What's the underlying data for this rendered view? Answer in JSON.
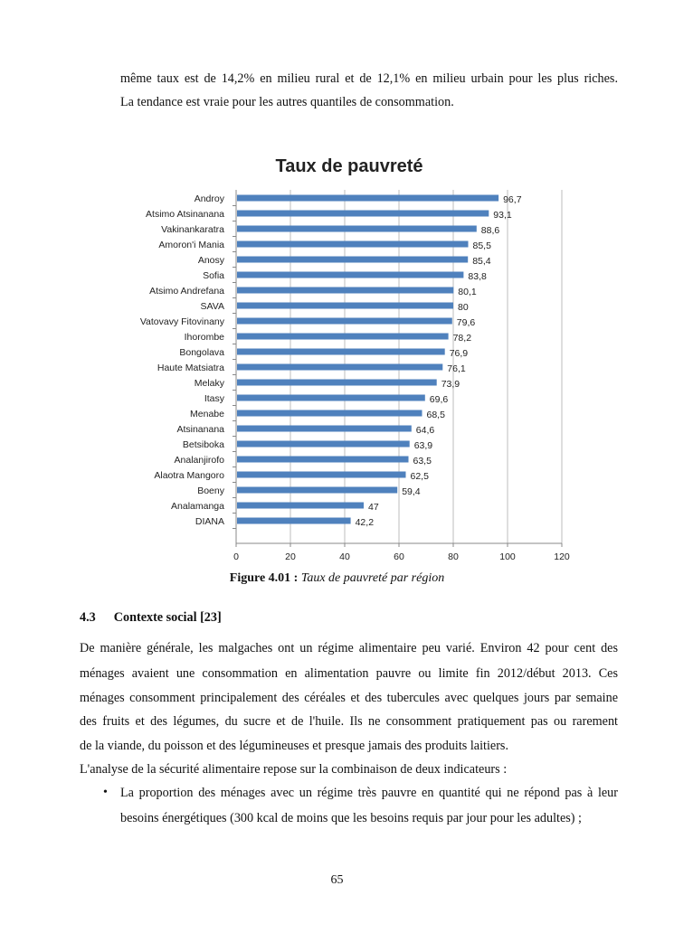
{
  "intro_lines": [
    "même taux est de 14,2% en milieu rural et de 12,1% en milieu urbain pour les plus riches.",
    "La tendance est vraie pour les autres quantiles de consommation."
  ],
  "chart_data": {
    "type": "bar",
    "orientation": "horizontal",
    "title": "Taux de pauvreté",
    "categories": [
      "Androy",
      "Atsimo Atsinanana",
      "Vakinankaratra",
      "Amoron'i Mania",
      "Anosy",
      "Sofia",
      "Atsimo Andrefana",
      "SAVA",
      "Vatovavy Fitovinany",
      "Ihorombe",
      "Bongolava",
      "Haute Matsiatra",
      "Melaky",
      "Itasy",
      "Menabe",
      "Atsinanana",
      "Betsiboka",
      "Analanjirofo",
      "Alaotra Mangoro",
      "Boeny",
      "Analamanga",
      "DIANA"
    ],
    "values": [
      96.7,
      93.1,
      88.6,
      85.5,
      85.4,
      83.8,
      80.1,
      80,
      79.6,
      78.2,
      76.9,
      76.1,
      73.9,
      69.6,
      68.5,
      64.6,
      63.9,
      63.5,
      62.5,
      59.4,
      47,
      42.2
    ],
    "value_labels": [
      "96,7",
      "93,1",
      "88,6",
      "85,5",
      "85,4",
      "83,8",
      "80,1",
      "80",
      "79,6",
      "78,2",
      "76,9",
      "76,1",
      "73,9",
      "69,6",
      "68,5",
      "64,6",
      "63,9",
      "63,5",
      "62,5",
      "59,4",
      "47",
      "42,2"
    ],
    "xlim": [
      0,
      120
    ],
    "xticks": [
      "0",
      "20",
      "40",
      "60",
      "80",
      "100",
      "120"
    ],
    "grid": true,
    "bar_color": "#4f81bd"
  },
  "caption": {
    "label": "Figure 4.01 :",
    "text": " Taux de pauvreté par région"
  },
  "heading": {
    "number": "4.3",
    "title": "Contexte social [23]"
  },
  "paragraph_lines": [
    "De manière générale, les malgaches ont un régime alimentaire peu varié. Environ 42 pour cent des",
    "ménages avaient une consommation en alimentation pauvre ou limite fin 2012/début 2013. Ces",
    "ménages consomment principalement des céréales et des tubercules avec quelques jours par semaine",
    "des fruits et des légumes, du sucre et de l'huile. Ils ne consomment pratiquement pas ou rarement",
    "de la viande, du poisson et des légumineuses et presque jamais des produits laitiers."
  ],
  "analysis_line": "L'analyse de la sécurité alimentaire repose sur la combinaison de deux indicateurs :",
  "bullet": {
    "symbol": "•",
    "lines": [
      "La proportion des ménages avec un régime très pauvre en quantité qui ne répond pas à leur",
      "besoins énergétiques (300 kcal de moins que les besoins requis par jour pour les adultes) ;"
    ]
  },
  "page_number": "65"
}
